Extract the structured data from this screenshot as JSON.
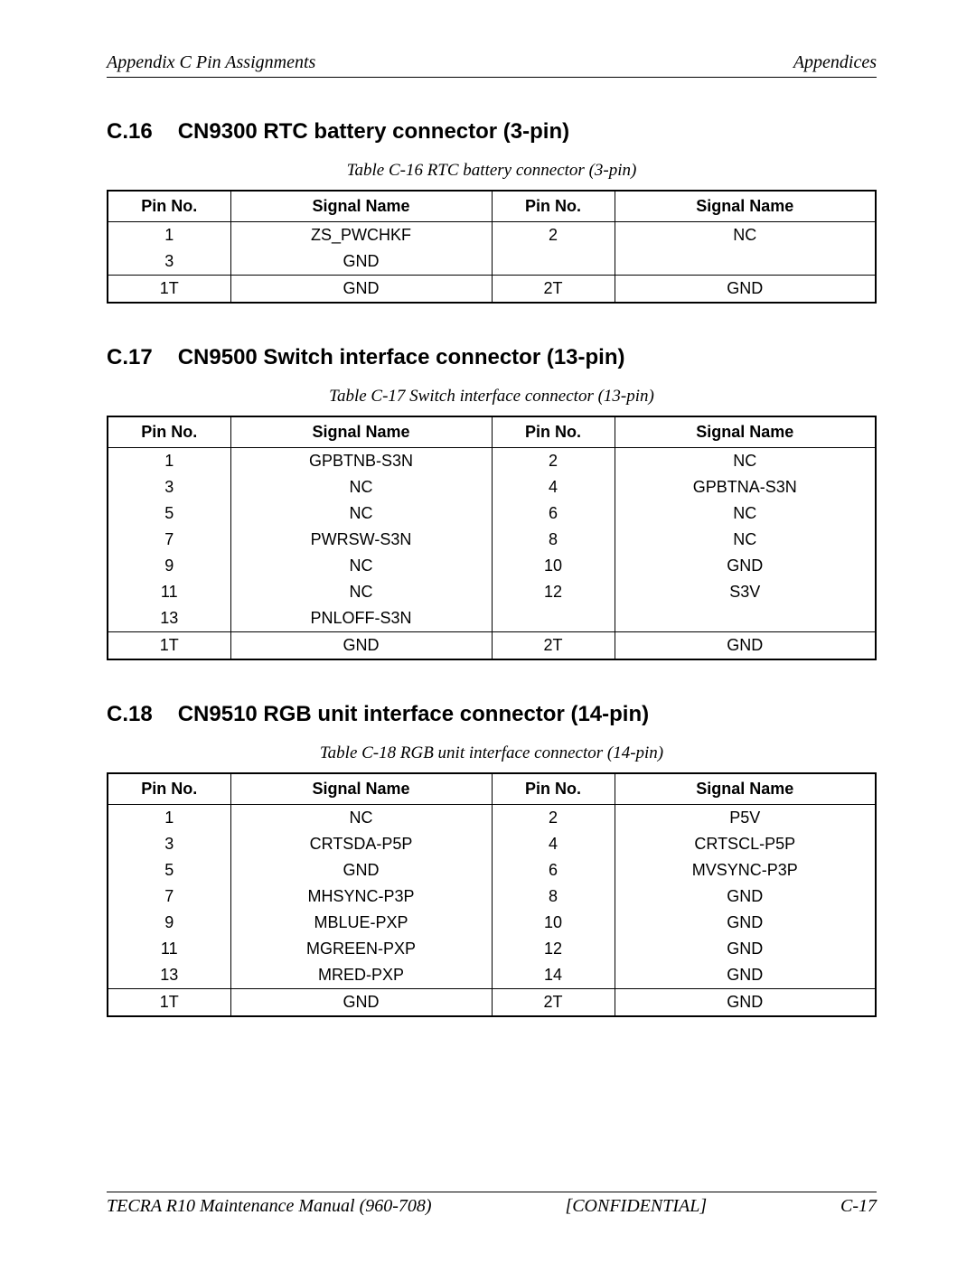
{
  "header": {
    "left": "Appendix C  Pin Assignments",
    "right": "Appendices"
  },
  "footer": {
    "left": "TECRA R10 Maintenance Manual (960-708)",
    "center": "[CONFIDENTIAL]",
    "right": "C-17"
  },
  "table_headers": {
    "pin": "Pin No.",
    "signal": "Signal Name"
  },
  "sections": [
    {
      "number": "C.16",
      "title": "CN9300  RTC battery connector (3-pin)",
      "caption": "Table C-16 RTC battery connector (3-pin)",
      "rows": [
        {
          "p1": "1",
          "s1": "ZS_PWCHKF",
          "p2": "2",
          "s2": "NC"
        },
        {
          "p1": "3",
          "s1": "GND",
          "p2": "",
          "s2": ""
        }
      ],
      "trailer": {
        "p1": "1T",
        "s1": "GND",
        "p2": "2T",
        "s2": "GND"
      }
    },
    {
      "number": "C.17",
      "title": "CN9500  Switch interface connector (13-pin)",
      "caption": "Table C-17 Switch interface connector (13-pin)",
      "rows": [
        {
          "p1": "1",
          "s1": "GPBTNB-S3N",
          "p2": "2",
          "s2": "NC"
        },
        {
          "p1": "3",
          "s1": "NC",
          "p2": "4",
          "s2": "GPBTNA-S3N"
        },
        {
          "p1": "5",
          "s1": "NC",
          "p2": "6",
          "s2": "NC"
        },
        {
          "p1": "7",
          "s1": "PWRSW-S3N",
          "p2": "8",
          "s2": "NC"
        },
        {
          "p1": "9",
          "s1": "NC",
          "p2": "10",
          "s2": "GND"
        },
        {
          "p1": "11",
          "s1": "NC",
          "p2": "12",
          "s2": "S3V"
        },
        {
          "p1": "13",
          "s1": "PNLOFF-S3N",
          "p2": "",
          "s2": ""
        }
      ],
      "trailer": {
        "p1": "1T",
        "s1": "GND",
        "p2": "2T",
        "s2": "GND"
      }
    },
    {
      "number": "C.18",
      "title": "CN9510  RGB unit interface connector (14-pin)",
      "caption": "Table C-18 RGB unit interface connector (14-pin)",
      "rows": [
        {
          "p1": "1",
          "s1": "NC",
          "p2": "2",
          "s2": "P5V"
        },
        {
          "p1": "3",
          "s1": "CRTSDA-P5P",
          "p2": "4",
          "s2": "CRTSCL-P5P"
        },
        {
          "p1": "5",
          "s1": "GND",
          "p2": "6",
          "s2": "MVSYNC-P3P"
        },
        {
          "p1": "7",
          "s1": "MHSYNC-P3P",
          "p2": "8",
          "s2": "GND"
        },
        {
          "p1": "9",
          "s1": "MBLUE-PXP",
          "p2": "10",
          "s2": "GND"
        },
        {
          "p1": "11",
          "s1": "MGREEN-PXP",
          "p2": "12",
          "s2": "GND"
        },
        {
          "p1": "13",
          "s1": "MRED-PXP",
          "p2": "14",
          "s2": "GND"
        }
      ],
      "trailer": {
        "p1": "1T",
        "s1": "GND",
        "p2": "2T",
        "s2": "GND"
      }
    }
  ]
}
